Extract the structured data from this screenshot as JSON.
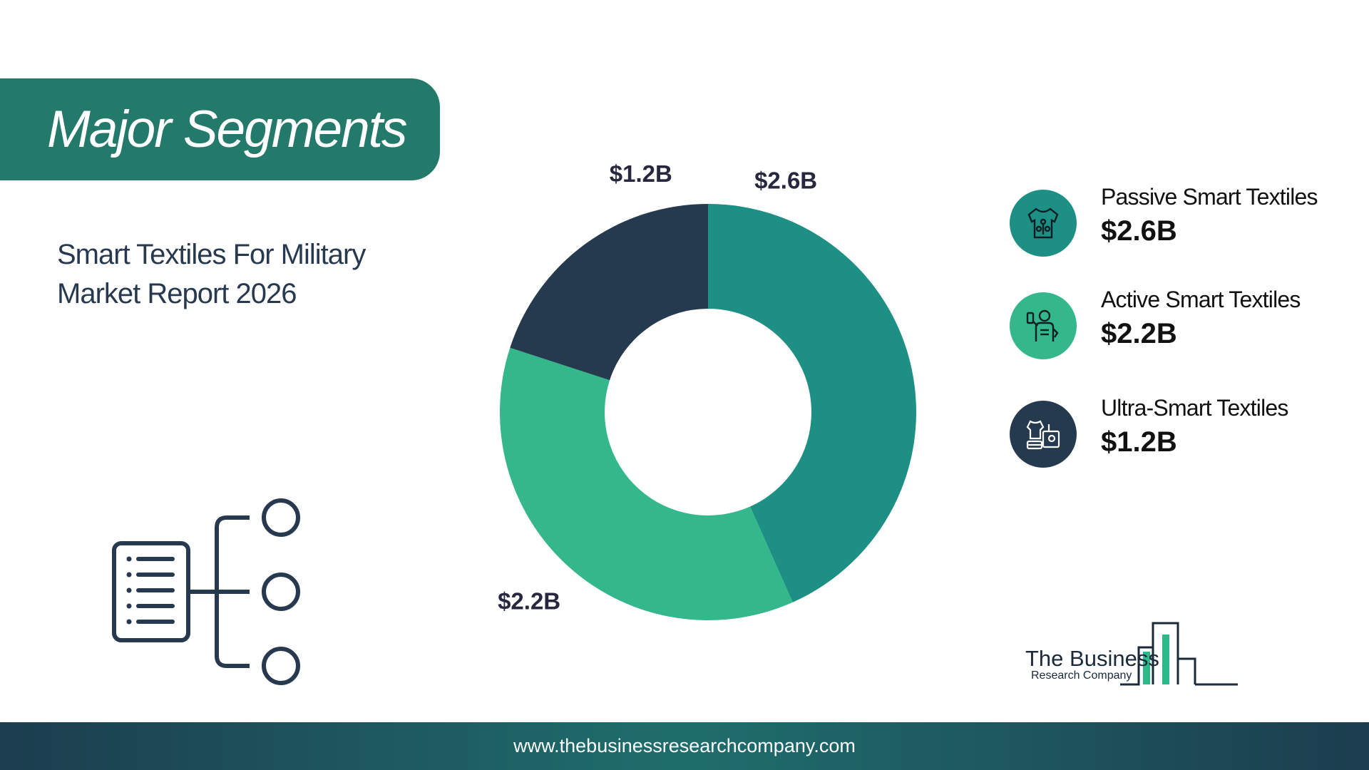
{
  "header": {
    "title": "Major Segments"
  },
  "report": {
    "title": "Smart Textiles For Military Market Report 2026"
  },
  "colors": {
    "passive": "#1e8f84",
    "active": "#34b78a",
    "ultra": "#253a4e",
    "banner": "#237a6b"
  },
  "chart_data": {
    "type": "pie",
    "donut": true,
    "unit": "USD billions",
    "categories": [
      "Passive Smart Textiles",
      "Active Smart Textiles",
      "Ultra-Smart Textiles"
    ],
    "values": [
      2.6,
      2.2,
      1.2
    ],
    "labels": [
      "$2.6B",
      "$2.2B",
      "$1.2B"
    ],
    "colors": [
      "#1e8f84",
      "#34b78a",
      "#253a4e"
    ],
    "start_angle": "12 o'clock",
    "direction": "clockwise"
  },
  "legend": {
    "items": [
      {
        "name": "Passive Smart Textiles",
        "value": "$2.6B",
        "color": "#1e8f84",
        "icon": "shirt-icon"
      },
      {
        "name": "Active Smart Textiles",
        "value": "$2.2B",
        "color": "#34b78a",
        "icon": "person-device-icon"
      },
      {
        "name": "Ultra-Smart Textiles",
        "value": "$1.2B",
        "color": "#253a4e",
        "icon": "sewing-machine-icon"
      }
    ]
  },
  "logo": {
    "line1": "The Business",
    "line2": "Research Company"
  },
  "footer": {
    "url": "www.thebusinessresearchcompany.com"
  }
}
